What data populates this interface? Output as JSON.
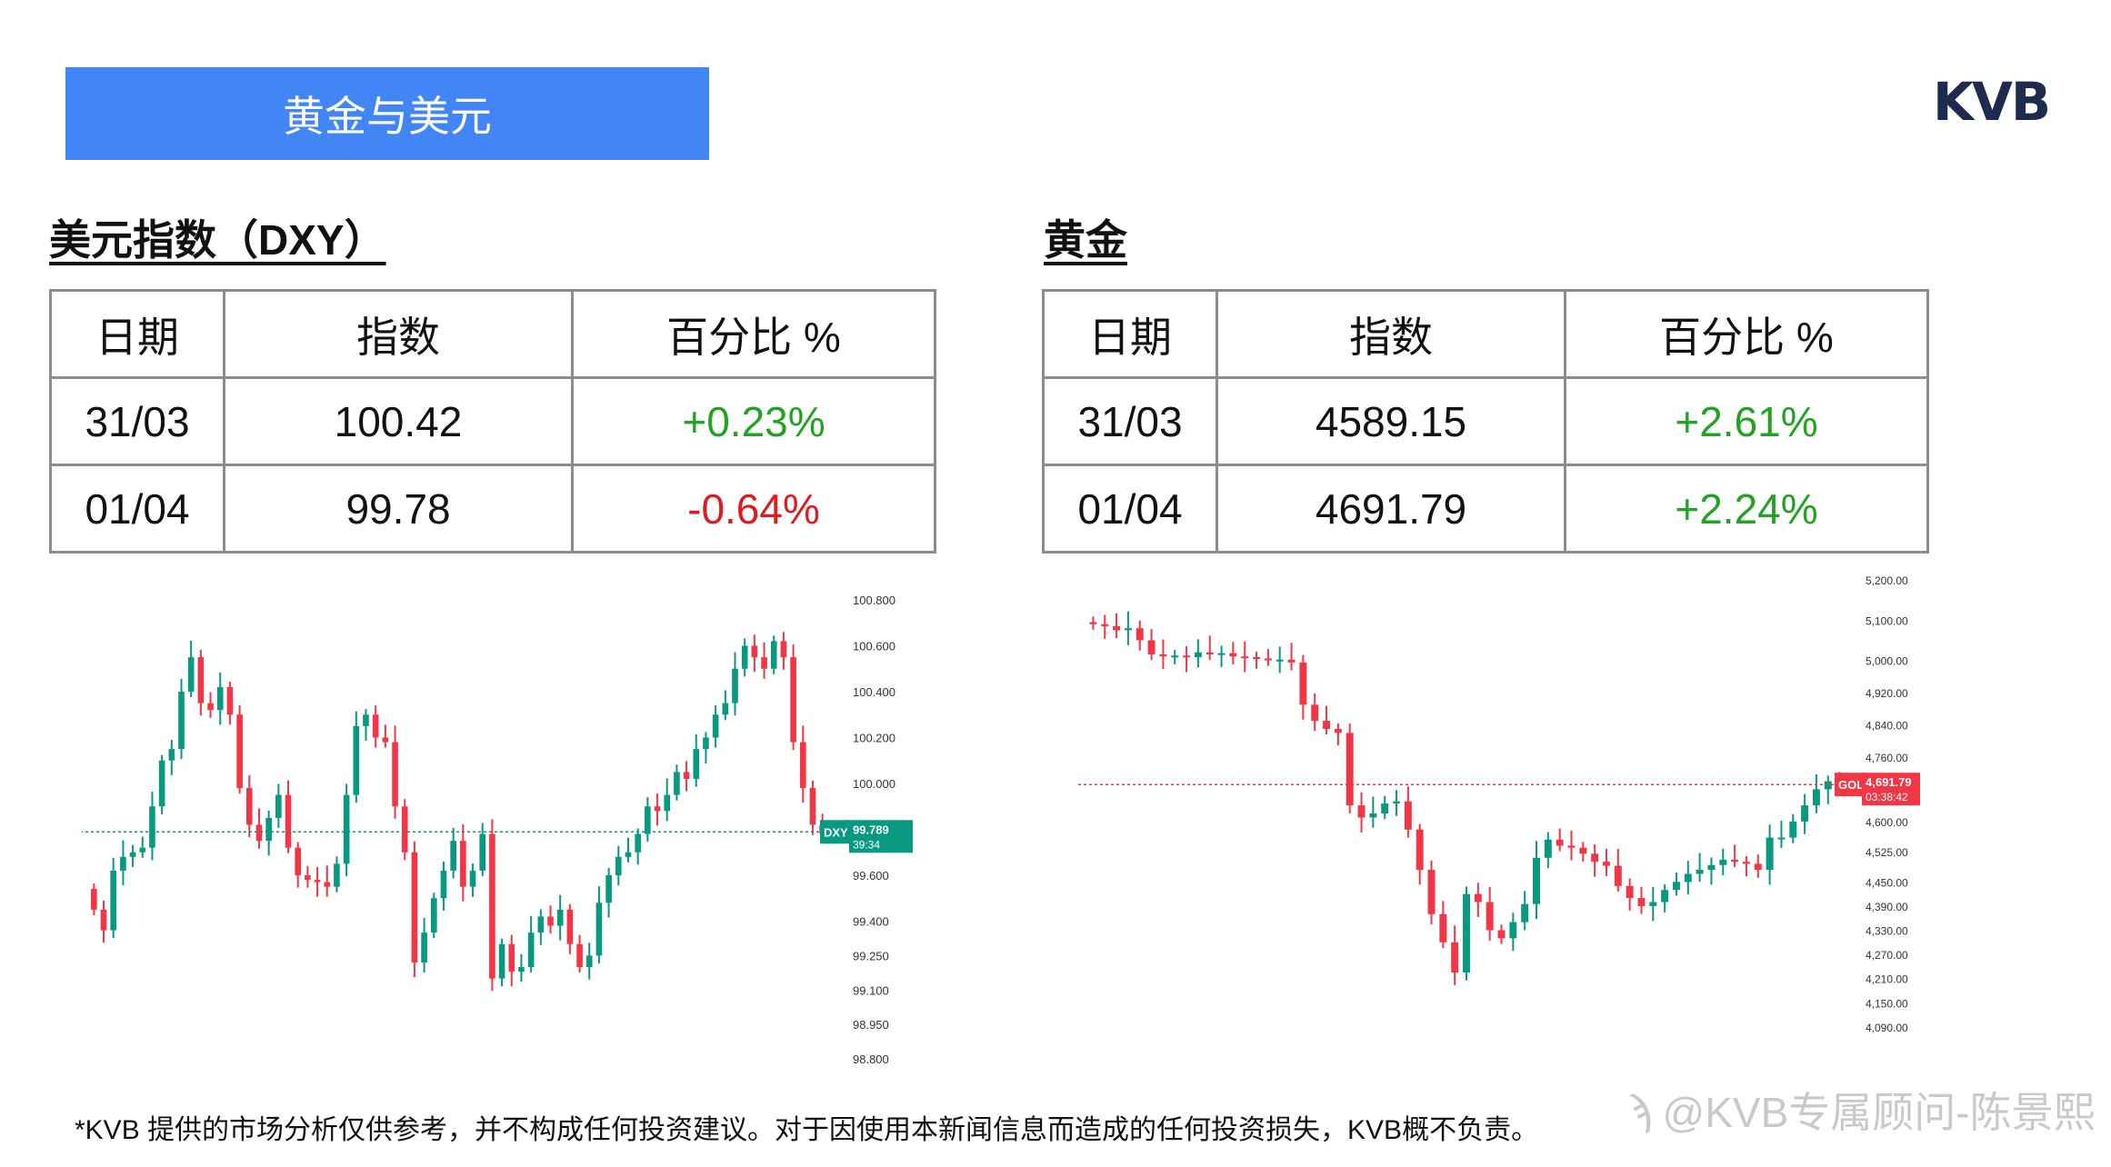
{
  "banner": {
    "title": "黄金与美元"
  },
  "logo": {
    "text": "KVB"
  },
  "dxy": {
    "title": "美元指数（DXY）",
    "headers": [
      "日期",
      "指数",
      "百分比 %"
    ],
    "rows": [
      {
        "date": "31/03",
        "value": "100.42",
        "pct": "+0.23%"
      },
      {
        "date": "01/04",
        "value": "99.78",
        "pct": "-0.64%"
      }
    ]
  },
  "gold": {
    "title": "黄金",
    "headers": [
      "日期",
      "指数",
      "百分比 %"
    ],
    "rows": [
      {
        "date": "31/03",
        "value": "4589.15",
        "pct": "+2.61%"
      },
      {
        "date": "01/04",
        "value": "4691.79",
        "pct": "+2.24%"
      }
    ]
  },
  "colors": {
    "up": "#089981",
    "down": "#f23645",
    "pos_text": "#22a422",
    "neg_text": "#e11b1b",
    "banner": "#4285f4"
  },
  "chart_data": [
    {
      "type": "candlestick",
      "title": "",
      "ylim": [
        98.8,
        100.8
      ],
      "y_ticks": [
        "100.800",
        "100.600",
        "100.400",
        "100.200",
        "100.000",
        "99.600",
        "99.400",
        "99.250",
        "99.100",
        "98.950",
        "98.800"
      ],
      "current_label": {
        "symbol": "DXY",
        "price": "99.789",
        "countdown": "39:34"
      },
      "current_value": 99.789,
      "closes": [
        99.45,
        99.36,
        99.62,
        99.68,
        99.7,
        99.72,
        99.9,
        100.1,
        100.15,
        100.4,
        100.55,
        100.35,
        100.32,
        100.42,
        100.3,
        99.98,
        99.82,
        99.75,
        99.85,
        99.95,
        99.72,
        99.6,
        99.58,
        99.57,
        99.55,
        99.65,
        99.95,
        100.25,
        100.3,
        100.2,
        100.18,
        99.9,
        99.7,
        99.22,
        99.35,
        99.5,
        99.62,
        99.75,
        99.55,
        99.62,
        99.78,
        99.15,
        99.3,
        99.18,
        99.2,
        99.35,
        99.42,
        99.38,
        99.45,
        99.3,
        99.2,
        99.25,
        99.48,
        99.6,
        99.68,
        99.7,
        99.78,
        99.9,
        99.88,
        99.95,
        100.05,
        100.02,
        100.15,
        100.2,
        100.3,
        100.35,
        100.5,
        100.6,
        100.55,
        100.5,
        100.62,
        100.55,
        100.18,
        99.98,
        99.82,
        99.78
      ]
    },
    {
      "type": "candlestick",
      "title": "",
      "ylim": [
        4040,
        5200
      ],
      "y_ticks": [
        "5,200.00",
        "5,100.00",
        "5,000.00",
        "4,920.00",
        "4,840.00",
        "4,760.00",
        "4,600.00",
        "4,525.00",
        "4,450.00",
        "4,390.00",
        "4,330.00",
        "4,270.00",
        "4,210.00",
        "4,150.00",
        "4,090.00"
      ],
      "current_label": {
        "symbol": "GOLD",
        "price": "4,691.79",
        "countdown": "03:38:42"
      },
      "current_value": 4691.79,
      "closes": [
        5090,
        5085,
        5075,
        5080,
        5050,
        5015,
        5010,
        5012,
        5008,
        5020,
        5015,
        5018,
        5010,
        5008,
        5005,
        5000,
        5002,
        4995,
        4890,
        4850,
        4830,
        4820,
        4640,
        4610,
        4620,
        4645,
        4650,
        4580,
        4480,
        4370,
        4300,
        4225,
        4420,
        4400,
        4330,
        4310,
        4350,
        4395,
        4510,
        4555,
        4540,
        4535,
        4520,
        4500,
        4490,
        4440,
        4410,
        4390,
        4400,
        4430,
        4450,
        4470,
        4480,
        4492,
        4505,
        4500,
        4495,
        4480,
        4560,
        4560,
        4600,
        4640,
        4680,
        4700,
        4691.79
      ]
    }
  ],
  "disclaimer": "*KVB 提供的市场分析仅供参考，并不构成任何投资建议。对于因使用本新闻信息而造成的任何投资损失，KVB概不负责。",
  "watermark": {
    "icon": "zhihu-icon",
    "text": "@KVB专属顾问-陈景熙"
  }
}
